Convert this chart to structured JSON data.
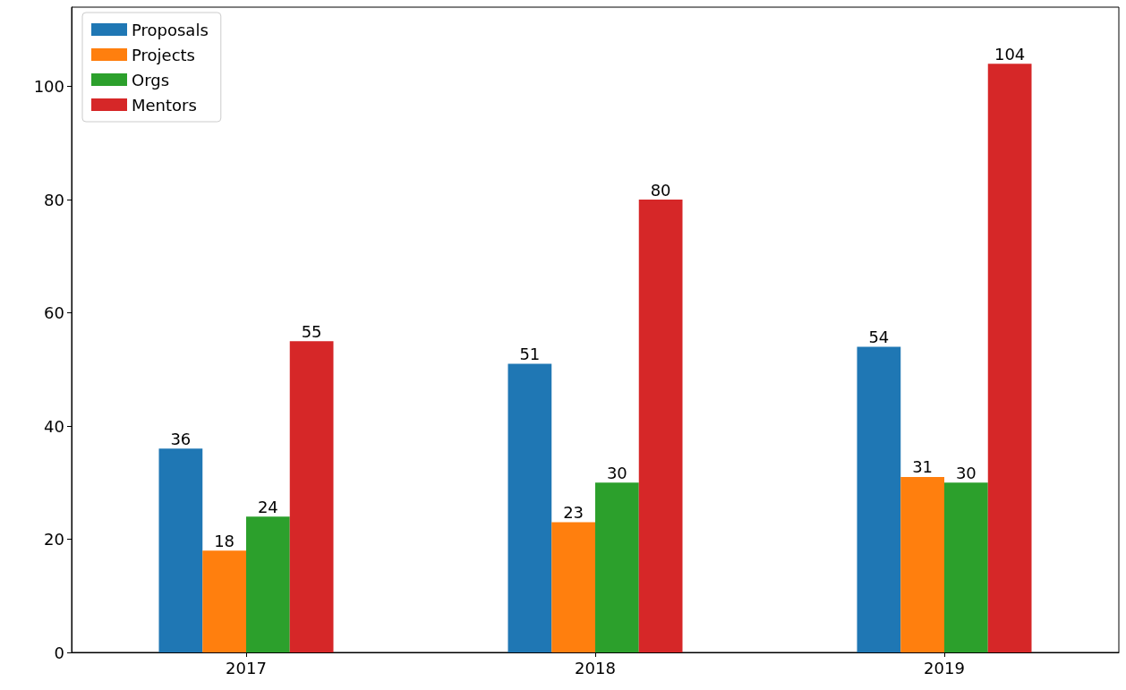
{
  "chart_data": {
    "type": "bar",
    "categories": [
      "2017",
      "2018",
      "2019"
    ],
    "series": [
      {
        "name": "Proposals",
        "color": "#1f77b4",
        "values": [
          36,
          51,
          54
        ]
      },
      {
        "name": "Projects",
        "color": "#ff7f0e",
        "values": [
          18,
          23,
          31
        ]
      },
      {
        "name": "Orgs",
        "color": "#2ca02c",
        "values": [
          24,
          30,
          30
        ]
      },
      {
        "name": "Mentors",
        "color": "#d62728",
        "values": [
          55,
          80,
          104
        ]
      }
    ],
    "ylim": [
      0,
      114
    ],
    "yticks": [
      0,
      20,
      40,
      60,
      80,
      100
    ],
    "data_labels": true,
    "legend": "top left",
    "grid": false
  }
}
